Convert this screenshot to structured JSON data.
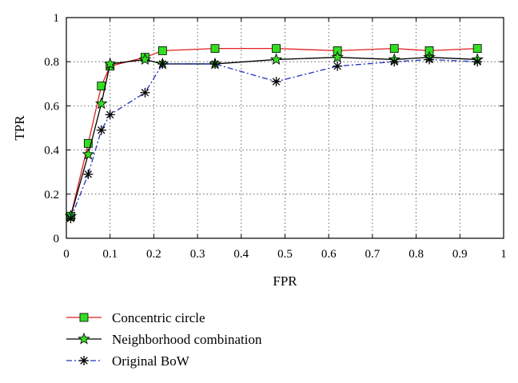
{
  "chart_data": {
    "type": "line",
    "xlabel": "FPR",
    "ylabel": "TPR",
    "xlim": [
      0,
      1
    ],
    "ylim": [
      0,
      1
    ],
    "xticks": [
      "0",
      "0.1",
      "0.2",
      "0.3",
      "0.4",
      "0.5",
      "0.6",
      "0.7",
      "0.8",
      "0.9",
      "1"
    ],
    "yticks": [
      "0",
      "0.2",
      "0.4",
      "0.6",
      "0.8",
      "1"
    ],
    "grid": true,
    "legend_position": "below",
    "series": [
      {
        "name": "Concentric circle",
        "color": "#e02020",
        "marker": "square",
        "marker_fill": "#33dd22",
        "line_style": "solid",
        "x": [
          0.01,
          0.05,
          0.08,
          0.1,
          0.18,
          0.22,
          0.34,
          0.48,
          0.62,
          0.75,
          0.83,
          0.94
        ],
        "y": [
          0.1,
          0.43,
          0.69,
          0.78,
          0.82,
          0.85,
          0.86,
          0.86,
          0.85,
          0.86,
          0.85,
          0.86
        ]
      },
      {
        "name": "Neighborhood combination",
        "color": "#000000",
        "marker": "star",
        "marker_fill": "#33dd22",
        "line_style": "solid",
        "x": [
          0.01,
          0.05,
          0.08,
          0.1,
          0.18,
          0.22,
          0.34,
          0.48,
          0.62,
          0.75,
          0.83,
          0.94
        ],
        "y": [
          0.1,
          0.38,
          0.61,
          0.79,
          0.81,
          0.79,
          0.79,
          0.81,
          0.82,
          0.81,
          0.82,
          0.81
        ]
      },
      {
        "name": "Original BoW",
        "color": "#2233bb",
        "marker": "asterisk",
        "marker_fill": "#000000",
        "line_style": "dashdot",
        "x": [
          0.01,
          0.05,
          0.08,
          0.1,
          0.18,
          0.22,
          0.34,
          0.48,
          0.62,
          0.75,
          0.83,
          0.94
        ],
        "y": [
          0.09,
          0.29,
          0.49,
          0.56,
          0.66,
          0.79,
          0.79,
          0.71,
          0.78,
          0.8,
          0.81,
          0.8
        ]
      }
    ]
  }
}
